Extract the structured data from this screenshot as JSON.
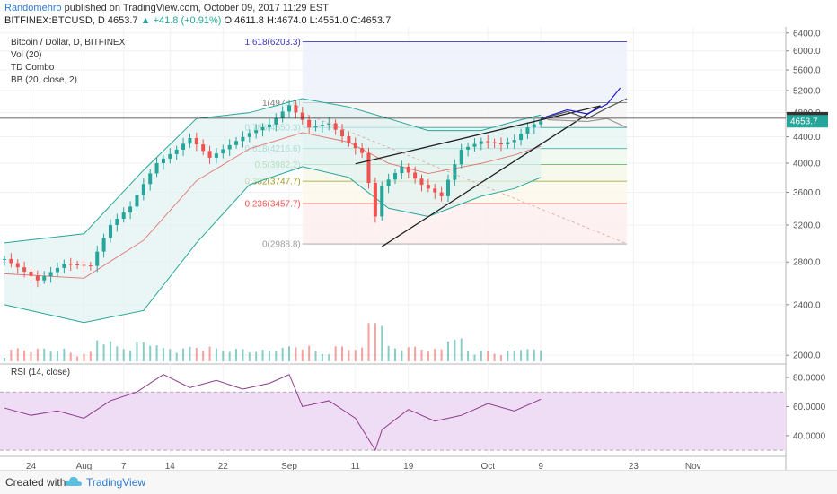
{
  "header": {
    "author": "Randomehro",
    "published_text": "published on TradingView.com, October 09, 2017 11:29 EST",
    "symbol": "BITFINEX:BTCUSD, D",
    "last": "4653.7",
    "change": "▲ +41.8 (+0.91%)",
    "ohlc": "O:4611.8  H:4674.0  L:4551.0  C:4653.7"
  },
  "legend": {
    "title": "Bitcoin / Dollar, D, BITFINEX",
    "vol": "Vol (20)",
    "td": "TD Combo",
    "bb": "BB (20, close, 2)",
    "rsi": "RSI (14, close)"
  },
  "footer": {
    "created": "Created with",
    "brand": "TradingView"
  },
  "colors": {
    "up": "#26a69a",
    "down": "#ef5350",
    "bb_band": "#26a69a",
    "bb_fill": "#e0f2f1",
    "rsi_line": "#8e3b8e",
    "rsi_fill": "#efdcf5",
    "projection_blue": "#1a1ad6"
  },
  "chart_data": [
    {
      "type": "candlestick",
      "title": "Bitcoin / Dollar, D, BITFINEX",
      "y_scale": "log",
      "ylim": [
        1950,
        6500
      ],
      "y_ticks": [
        "6400.0",
        "6000.0",
        "5600.0",
        "5200.0",
        "4800.0",
        "4400.0",
        "4000.0",
        "3600.0",
        "3200.0",
        "2800.0",
        "2400.0",
        "2000.0"
      ],
      "price_labels": [
        {
          "value": 4704.3,
          "label": "4704.3"
        },
        {
          "value": 4653.7,
          "label": "4653.7"
        }
      ],
      "x_ticks": [
        "24",
        "Aug",
        "7",
        "14",
        "22",
        "Sep",
        "11",
        "19",
        "Oct",
        "9",
        "23",
        "Nov"
      ],
      "x_tick_dates": [
        "2017-07-24",
        "2017-08-01",
        "2017-08-07",
        "2017-08-14",
        "2017-08-22",
        "2017-09-01",
        "2017-09-11",
        "2017-09-19",
        "2017-10-01",
        "2017-10-09",
        "2017-10-23",
        "2017-11-01"
      ],
      "x_end": "2017-11-15",
      "close": {
        "dates": [
          "2017-07-20",
          "2017-07-25",
          "2017-07-29",
          "2017-08-02",
          "2017-08-05",
          "2017-08-08",
          "2017-08-12",
          "2017-08-15",
          "2017-08-17",
          "2017-08-20",
          "2017-08-23",
          "2017-08-26",
          "2017-08-29",
          "2017-09-01",
          "2017-09-04",
          "2017-09-07",
          "2017-09-10",
          "2017-09-12",
          "2017-09-14",
          "2017-09-15",
          "2017-09-18",
          "2017-09-21",
          "2017-09-24",
          "2017-09-27",
          "2017-09-30",
          "2017-10-03",
          "2017-10-05",
          "2017-10-07",
          "2017-10-09"
        ],
        "values": [
          2830,
          2620,
          2780,
          2760,
          3200,
          3420,
          4000,
          4200,
          4380,
          4080,
          4270,
          4460,
          4600,
          4930,
          4550,
          4620,
          4300,
          4150,
          3300,
          3680,
          3950,
          3700,
          3550,
          4200,
          4330,
          4280,
          4350,
          4550,
          4653.7
        ]
      },
      "volume_note": "volume histogram with 20-period average",
      "bollinger": {
        "dates": [
          "2017-07-20",
          "2017-08-01",
          "2017-08-10",
          "2017-08-18",
          "2017-08-26",
          "2017-09-03",
          "2017-09-10",
          "2017-09-16",
          "2017-09-22",
          "2017-09-30",
          "2017-10-05",
          "2017-10-09"
        ],
        "upper": [
          3000,
          3100,
          3900,
          4700,
          4800,
          5050,
          4900,
          4700,
          4500,
          4500,
          4650,
          4760
        ],
        "lower": [
          2400,
          2250,
          2350,
          3000,
          3700,
          3950,
          3800,
          3400,
          3300,
          3550,
          3650,
          3800
        ]
      },
      "fibonacci": [
        {
          "ratio": "1.618",
          "value": 6203.3,
          "label": "1.618(6203.3)"
        },
        {
          "ratio": "1",
          "value": 4975.6,
          "label": "1(4975.6)"
        },
        {
          "ratio": "0.786",
          "value": 4550.3,
          "label": "0.786(4550.3)"
        },
        {
          "ratio": "0.618",
          "value": 4216.6,
          "label": "0.618(4216.6)"
        },
        {
          "ratio": "0.5",
          "value": 3982.2,
          "label": "0.5(3982.2)"
        },
        {
          "ratio": "0.382",
          "value": 3747.7,
          "label": "0.382(3747.7)"
        },
        {
          "ratio": "0.236",
          "value": 3457.7,
          "label": "0.236(3457.7)"
        },
        {
          "ratio": "0",
          "value": 2988.8,
          "label": "0(2988.8)"
        }
      ]
    },
    {
      "type": "line",
      "title": "RSI (14, close)",
      "ylim": [
        27,
        88
      ],
      "y_ticks": [
        "80.0000",
        "60.0000",
        "40.0000"
      ],
      "band": [
        30,
        70
      ],
      "dates": [
        "2017-07-20",
        "2017-07-24",
        "2017-07-28",
        "2017-08-01",
        "2017-08-05",
        "2017-08-09",
        "2017-08-13",
        "2017-08-17",
        "2017-08-21",
        "2017-08-25",
        "2017-08-29",
        "2017-09-01",
        "2017-09-03",
        "2017-09-07",
        "2017-09-11",
        "2017-09-14",
        "2017-09-15",
        "2017-09-19",
        "2017-09-23",
        "2017-09-27",
        "2017-10-01",
        "2017-10-05",
        "2017-10-09"
      ],
      "values": [
        59,
        54,
        57,
        52,
        64,
        70,
        82,
        73,
        78,
        72,
        76,
        82,
        60,
        64,
        52,
        30,
        44,
        58,
        50,
        54,
        62,
        57,
        65
      ]
    }
  ]
}
